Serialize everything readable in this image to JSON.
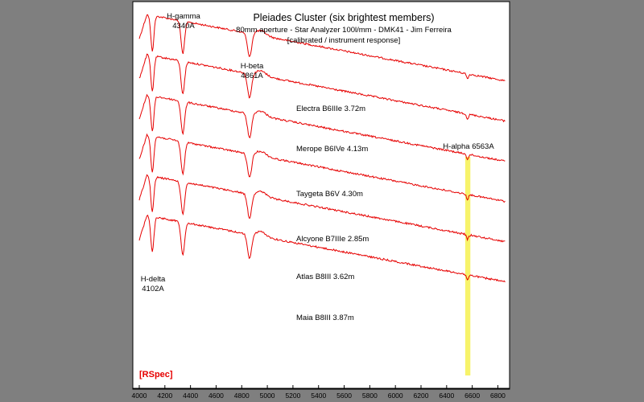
{
  "colors": {
    "spectrum": "#e60000",
    "highlight": "#f7f36a",
    "background_outer": "#7f7f7f",
    "plot_background": "#ffffff",
    "logo": "#e60000"
  },
  "chart_data": {
    "type": "line",
    "title": "Pleiades Cluster (six brightest members)",
    "subtitle": "80mm aperture - Star Analyzer 100l/mm - DMK41 - Jim Ferreira",
    "subtitle2": "[calibrated / instrument response]",
    "xlabel": "",
    "ylabel": "",
    "xlim": [
      4000,
      6860
    ],
    "xticks": [
      4000,
      4200,
      4400,
      4600,
      4800,
      5000,
      5200,
      5400,
      5600,
      5800,
      6000,
      6200,
      6400,
      6600,
      6800
    ],
    "xtick_labels": [
      "4000",
      "4200",
      "4400",
      "4600",
      "4800",
      "5000",
      "5200",
      "5400",
      "5600",
      "5800",
      "6000",
      "6200",
      "6400",
      "6600",
      "6800"
    ],
    "grid": false,
    "logo": "[RSpec]",
    "highlight_band": {
      "label": "H-alpha 6563A",
      "x": [
        6545,
        6585
      ]
    },
    "line_annotations": [
      {
        "lines": [
          "H-gamma",
          "4340A"
        ],
        "x": 4340
      },
      {
        "lines": [
          "H-beta",
          "4861A"
        ],
        "x": 4861
      },
      {
        "lines": [
          "H-delta",
          "4102A"
        ],
        "x": 4102
      }
    ],
    "series": [
      {
        "name": "Electra B6IIIe 3.72m",
        "offset": 0
      },
      {
        "name": "Merope B6IVe 4.13m",
        "offset": 1
      },
      {
        "name": "Taygeta B6V 4.30m",
        "offset": 2
      },
      {
        "name": "Alcyone B7IIIe 2.85m",
        "offset": 3
      },
      {
        "name": "Atlas B8III 3.62m",
        "offset": 4
      },
      {
        "name": "Maia B8III 3.87m",
        "offset": 5
      }
    ]
  }
}
